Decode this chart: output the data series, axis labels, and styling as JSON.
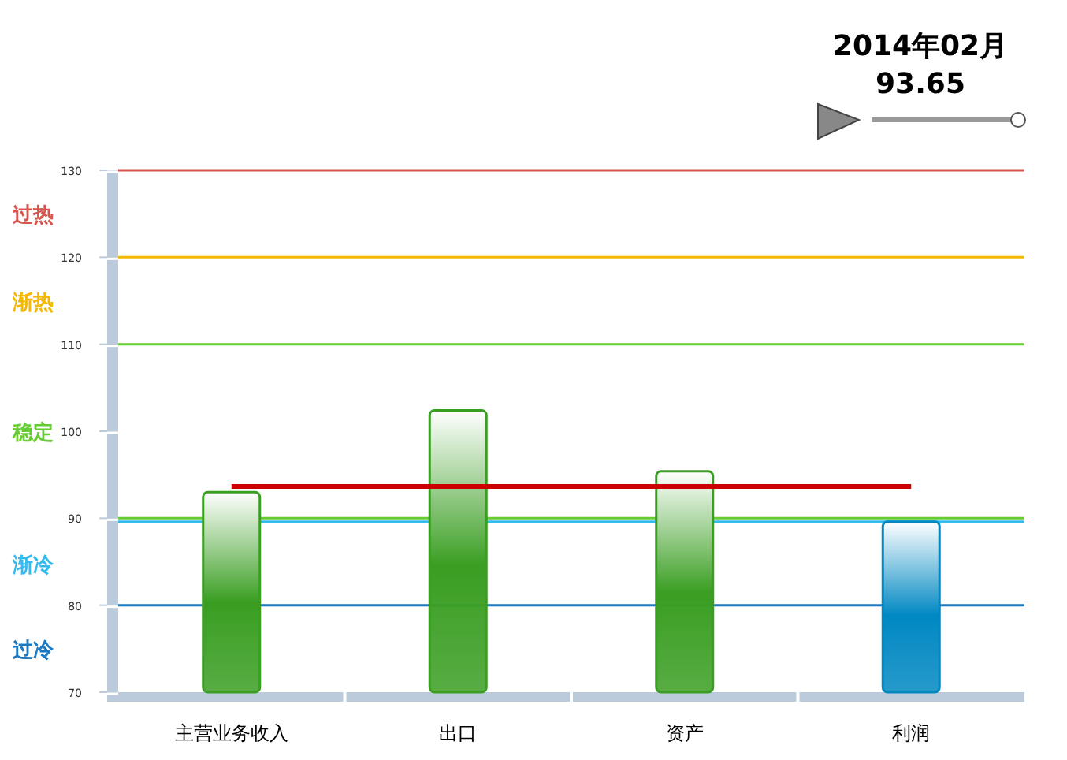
{
  "chart_data": {
    "type": "bar",
    "title": "2014年02月",
    "subtitle": "93.65",
    "categories": [
      "主营业务收入",
      "出口",
      "资产",
      "利润"
    ],
    "series": [
      {
        "values": [
          93.0,
          102.4,
          95.4,
          89.6
        ],
        "colors": [
          "#3a9e22",
          "#3a9e22",
          "#3a9e22",
          "#0088c2"
        ]
      },
      {
        "type": "line",
        "values": [
          93.65,
          93.65,
          93.65,
          93.65
        ],
        "color": "#cc0000"
      }
    ],
    "ylim": [
      70,
      130
    ],
    "yticks": [
      70,
      80,
      90,
      100,
      110,
      120,
      130
    ],
    "grid": false,
    "ref_lines": [
      {
        "axis": "y",
        "value": 130,
        "color": "#d9534f"
      },
      {
        "axis": "y",
        "value": 120,
        "color": "#f5b800"
      },
      {
        "axis": "y",
        "value": 110,
        "color": "#66cc33"
      },
      {
        "axis": "y",
        "value": 90,
        "color": "#66cc33"
      },
      {
        "axis": "y",
        "value": 89.6,
        "color": "#33bbee"
      },
      {
        "axis": "y",
        "value": 80,
        "color": "#1a7ac4"
      }
    ],
    "annotations": [
      "过热",
      "渐热",
      "稳定",
      "渐冷",
      "过冷"
    ]
  }
}
